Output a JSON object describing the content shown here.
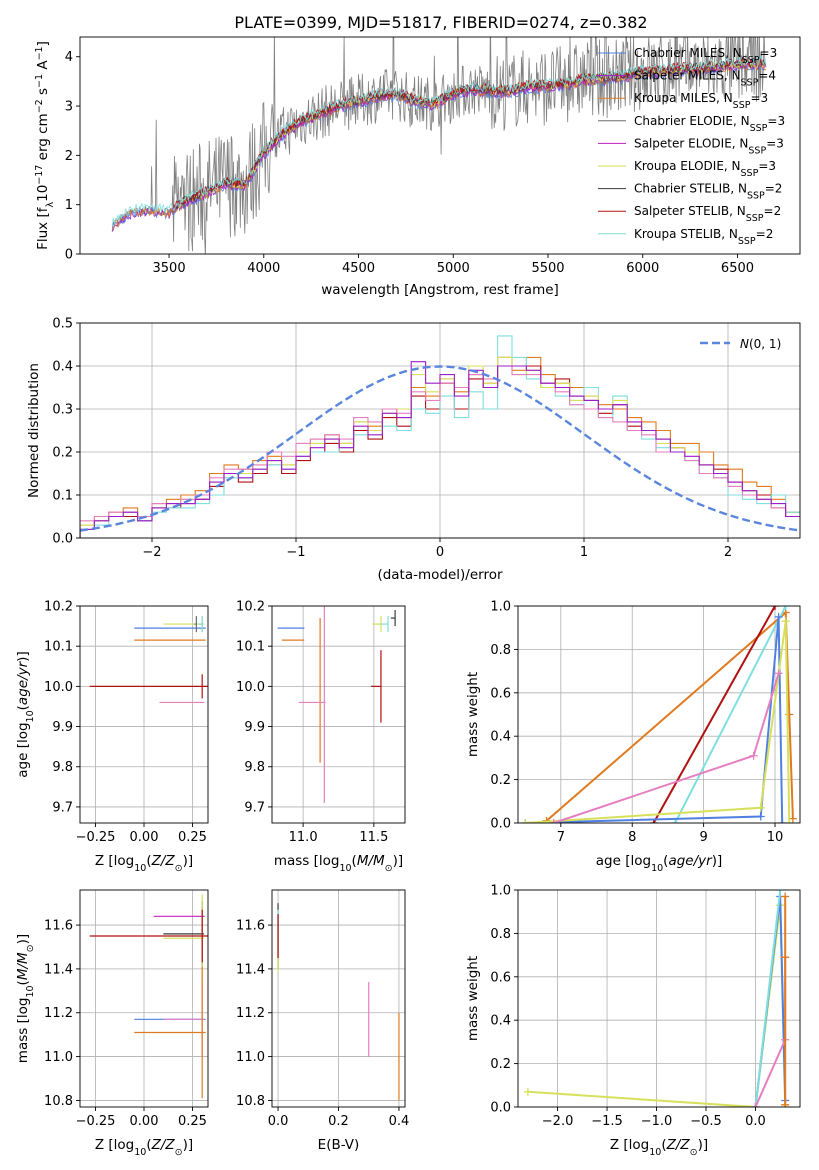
{
  "figure_title": "PLATE=0399, MJD=51817, FIBERID=0274, z=0.382",
  "colors": {
    "chabrier_miles": "#4f7fe0",
    "salpeter_miles": "#9a1fc8",
    "kroupa_miles": "#e07a1f",
    "chabrier_elodie": "#6e6e6e",
    "salpeter_elodie": "#c020c0",
    "kroupa_elodie": "#d6e05a",
    "chabrier_stelib": "#3a3a3a",
    "salpeter_stelib": "#b01010",
    "kroupa_stelib": "#7fdede",
    "pink": "#e67fbf",
    "normal_curve": "#5b86dd"
  },
  "chart_data": [
    {
      "id": "spectrum",
      "type": "line",
      "title": "PLATE=0399, MJD=51817, FIBERID=0274, z=0.382",
      "xlabel": "wavelength [Angstrom, rest frame]",
      "ylabel": "Flux [f_λ 10^-17 erg cm^-2 s^-1 A^-1]",
      "xlim": [
        3030,
        6830
      ],
      "ylim": [
        0,
        4.4
      ],
      "xticks": [
        3500,
        4000,
        4500,
        5000,
        5500,
        6000,
        6500
      ],
      "yticks": [
        0,
        1,
        2,
        3,
        4
      ],
      "legend_position": "right",
      "legend": [
        "Chabrier MILES, N_SSP=3",
        "Salpeter MILES, N_SSP=4",
        "Kroupa MILES, N_SSP=3",
        "Chabrier ELODIE, N_SSP=3",
        "Salpeter ELODIE, N_SSP=3",
        "Kroupa ELODIE, N_SSP=3",
        "Chabrier STELIB, N_SSP=2",
        "Salpeter STELIB, N_SSP=2",
        "Kroupa STELIB, N_SSP=2"
      ],
      "model_continuum": {
        "x": [
          3200,
          3300,
          3400,
          3500,
          3600,
          3700,
          3800,
          3900,
          4000,
          4100,
          4200,
          4300,
          4400,
          4500,
          4600,
          4700,
          4800,
          4900,
          5000,
          5100,
          5200,
          5300,
          5400,
          5500,
          5600,
          5700,
          5800,
          5900,
          6000,
          6100,
          6200,
          6300,
          6400,
          6500,
          6600
        ],
        "y": [
          0.6,
          0.85,
          0.9,
          0.85,
          1.1,
          1.25,
          1.45,
          1.4,
          2.05,
          2.45,
          2.7,
          2.85,
          3.0,
          3.1,
          3.2,
          3.25,
          3.1,
          3.05,
          3.25,
          3.35,
          3.3,
          3.3,
          3.4,
          3.4,
          3.45,
          3.55,
          3.55,
          3.6,
          3.7,
          3.7,
          3.75,
          3.75,
          3.8,
          3.85,
          3.85
        ]
      }
    },
    {
      "id": "residuals",
      "type": "histogram",
      "xlabel": "(data-model)/error",
      "ylabel": "Normed distribution",
      "xlim": [
        -2.5,
        2.5
      ],
      "ylim": [
        0,
        0.5
      ],
      "xticks": [
        -2,
        -1,
        0,
        1,
        2
      ],
      "yticks": [
        0.0,
        0.1,
        0.2,
        0.3,
        0.4,
        0.5
      ],
      "legend": [
        "N(0,1)"
      ],
      "legend_position": "top-right",
      "bin_width": 0.1,
      "bin_start": -2.5,
      "histograms": [
        {
          "color": "kroupa_miles",
          "values": [
            0.03,
            0.05,
            0.06,
            0.07,
            0.05,
            0.08,
            0.09,
            0.1,
            0.11,
            0.15,
            0.17,
            0.16,
            0.18,
            0.19,
            0.17,
            0.2,
            0.23,
            0.24,
            0.22,
            0.27,
            0.26,
            0.3,
            0.28,
            0.35,
            0.33,
            0.37,
            0.34,
            0.38,
            0.36,
            0.4,
            0.39,
            0.42,
            0.38,
            0.36,
            0.35,
            0.33,
            0.31,
            0.3,
            0.28,
            0.27,
            0.25,
            0.22,
            0.22,
            0.2,
            0.17,
            0.16,
            0.13,
            0.12,
            0.09,
            0.06
          ]
        },
        {
          "color": "salpeter_stelib",
          "values": [
            0.02,
            0.04,
            0.05,
            0.05,
            0.04,
            0.07,
            0.07,
            0.08,
            0.09,
            0.12,
            0.15,
            0.13,
            0.15,
            0.17,
            0.15,
            0.18,
            0.2,
            0.22,
            0.2,
            0.25,
            0.23,
            0.28,
            0.26,
            0.33,
            0.3,
            0.36,
            0.3,
            0.37,
            0.35,
            0.42,
            0.4,
            0.4,
            0.36,
            0.37,
            0.33,
            0.32,
            0.29,
            0.31,
            0.26,
            0.25,
            0.23,
            0.21,
            0.2,
            0.17,
            0.16,
            0.13,
            0.11,
            0.1,
            0.07,
            0.05
          ]
        },
        {
          "color": "kroupa_stelib",
          "values": [
            0.02,
            0.03,
            0.05,
            0.06,
            0.04,
            0.06,
            0.07,
            0.07,
            0.08,
            0.1,
            0.14,
            0.14,
            0.16,
            0.17,
            0.16,
            0.19,
            0.2,
            0.2,
            0.21,
            0.24,
            0.25,
            0.26,
            0.25,
            0.3,
            0.29,
            0.33,
            0.28,
            0.34,
            0.3,
            0.47,
            0.42,
            0.37,
            0.35,
            0.33,
            0.31,
            0.35,
            0.28,
            0.33,
            0.25,
            0.23,
            0.21,
            0.2,
            0.18,
            0.15,
            0.14,
            0.1,
            0.09,
            0.08,
            0.1,
            0.06
          ]
        },
        {
          "color": "kroupa_elodie",
          "values": [
            0.03,
            0.04,
            0.05,
            0.06,
            0.05,
            0.07,
            0.08,
            0.09,
            0.1,
            0.13,
            0.15,
            0.15,
            0.17,
            0.18,
            0.17,
            0.2,
            0.22,
            0.23,
            0.22,
            0.27,
            0.25,
            0.29,
            0.3,
            0.38,
            0.34,
            0.37,
            0.35,
            0.4,
            0.36,
            0.42,
            0.38,
            0.39,
            0.35,
            0.36,
            0.32,
            0.33,
            0.3,
            0.32,
            0.27,
            0.25,
            0.22,
            0.21,
            0.2,
            0.17,
            0.15,
            0.12,
            0.11,
            0.09,
            0.07,
            0.05
          ]
        },
        {
          "color": "pink",
          "values": [
            0.04,
            0.05,
            0.06,
            0.06,
            0.05,
            0.08,
            0.08,
            0.09,
            0.1,
            0.14,
            0.16,
            0.16,
            0.17,
            0.2,
            0.19,
            0.22,
            0.23,
            0.24,
            0.23,
            0.28,
            0.27,
            0.3,
            0.29,
            0.34,
            0.32,
            0.36,
            0.35,
            0.38,
            0.37,
            0.4,
            0.38,
            0.38,
            0.36,
            0.34,
            0.31,
            0.3,
            0.28,
            0.27,
            0.25,
            0.24,
            0.2,
            0.2,
            0.18,
            0.15,
            0.14,
            0.12,
            0.1,
            0.09,
            0.07,
            0.05
          ]
        },
        {
          "color": "salpeter_miles",
          "values": [
            0.02,
            0.04,
            0.05,
            0.06,
            0.04,
            0.07,
            0.08,
            0.08,
            0.09,
            0.13,
            0.15,
            0.14,
            0.16,
            0.18,
            0.16,
            0.19,
            0.21,
            0.23,
            0.21,
            0.26,
            0.24,
            0.29,
            0.28,
            0.41,
            0.36,
            0.38,
            0.33,
            0.39,
            0.35,
            0.4,
            0.4,
            0.39,
            0.36,
            0.35,
            0.33,
            0.32,
            0.3,
            0.31,
            0.27,
            0.25,
            0.23,
            0.2,
            0.19,
            0.17,
            0.15,
            0.13,
            0.11,
            0.09,
            0.08,
            0.05
          ]
        }
      ],
      "normal_curve": {
        "mean": 0,
        "sigma": 1
      }
    },
    {
      "id": "age_vs_Z",
      "type": "errorbar",
      "xlabel": "Z [log10(Z/Z_sun)]",
      "ylabel": "age [log10(age/yr)]",
      "xlim": [
        -0.33,
        0.33
      ],
      "ylim": [
        9.66,
        10.2
      ],
      "xticks": [
        -0.25,
        0.0,
        0.25
      ],
      "xticklabels": [
        "−0.25",
        "0.00",
        "0.25"
      ],
      "yticks": [
        9.7,
        9.8,
        9.9,
        10.0,
        10.1,
        10.2
      ],
      "points": [
        {
          "color": "chabrier_miles",
          "x": 0.3,
          "y": 10.145,
          "x_err": 0.35,
          "y_err": 0
        },
        {
          "color": "kroupa_miles",
          "x": 0.3,
          "y": 10.115,
          "x_err": 0.35,
          "y_err": 0
        },
        {
          "color": "kroupa_elodie",
          "x": 0.3,
          "y": 10.155,
          "x_err": 0.2,
          "y_err": 0.02
        },
        {
          "color": "chabrier_elodie",
          "x": 0.27,
          "y": 10.155,
          "x_err": 0.01,
          "y_err": 0.02
        },
        {
          "color": "kroupa_stelib",
          "x": 0.3,
          "y": 10.155,
          "x_err": 0.02,
          "y_err": 0.02
        },
        {
          "color": "salpeter_stelib",
          "x": 0.3,
          "y": 10.0,
          "x_err": 0.58,
          "y_err": 0.03
        },
        {
          "color": "pink",
          "x": 0.3,
          "y": 9.96,
          "x_err": 0.22,
          "y_err": 0
        }
      ]
    },
    {
      "id": "age_vs_mass",
      "type": "errorbar",
      "xlabel": "mass [log10(M/M_sun)]",
      "ylabel": "",
      "xlim": [
        10.78,
        11.72
      ],
      "ylim": [
        9.66,
        10.2
      ],
      "xticks": [
        11.0,
        11.5
      ],
      "yticks": [
        9.7,
        9.8,
        9.9,
        10.0,
        10.1,
        10.2
      ],
      "points": [
        {
          "color": "chabrier_miles",
          "x": 11.0,
          "y": 10.145,
          "x_err": 0.18,
          "y_err": 0
        },
        {
          "color": "kroupa_miles",
          "x": 11.0,
          "y": 10.115,
          "x_err": 0.15,
          "y_err": 0
        },
        {
          "color": "kroupa_miles",
          "x": 11.12,
          "y": 9.99,
          "x_err": 0,
          "y_err": 0.18
        },
        {
          "color": "pink",
          "x": 11.15,
          "y": 9.96,
          "x_err": 0.18,
          "y_err": 0.25
        },
        {
          "color": "kroupa_elodie",
          "x": 11.55,
          "y": 10.155,
          "x_err": 0.06,
          "y_err": 0.02
        },
        {
          "color": "kroupa_stelib",
          "x": 11.6,
          "y": 10.155,
          "x_err": 0.05,
          "y_err": 0.02
        },
        {
          "color": "chabrier_stelib",
          "x": 11.65,
          "y": 10.17,
          "x_err": 0.03,
          "y_err": 0.02
        },
        {
          "color": "salpeter_stelib",
          "x": 11.55,
          "y": 10.0,
          "x_err": 0.07,
          "y_err": 0.09
        }
      ]
    },
    {
      "id": "weight_vs_age",
      "type": "line",
      "xlabel": "age [log10(age/yr)]",
      "ylabel": "mass weight",
      "xlim": [
        6.4,
        10.35
      ],
      "ylim": [
        0,
        1
      ],
      "xticks": [
        7,
        8,
        9,
        10
      ],
      "yticks": [
        0.0,
        0.2,
        0.4,
        0.6,
        0.8,
        1.0
      ],
      "series": [
        {
          "color": "kroupa_miles",
          "x": [
            6.8,
            10.15,
            10.2,
            10.25
          ],
          "y": [
            0.01,
            0.97,
            0.5,
            0.02
          ]
        },
        {
          "color": "salpeter_stelib",
          "x": [
            8.3,
            10.0
          ],
          "y": [
            0.0,
            1.0
          ]
        },
        {
          "color": "kroupa_stelib",
          "x": [
            8.6,
            10.15
          ],
          "y": [
            0.0,
            1.0
          ]
        },
        {
          "color": "chabrier_miles",
          "x": [
            6.5,
            9.8,
            10.05,
            10.1
          ],
          "y": [
            0.0,
            0.03,
            0.95,
            0.0
          ]
        },
        {
          "color": "kroupa_elodie",
          "x": [
            6.5,
            9.8,
            10.15,
            10.2
          ],
          "y": [
            0.0,
            0.07,
            0.93,
            0.0
          ]
        },
        {
          "color": "pink",
          "x": [
            6.9,
            9.7,
            10.05
          ],
          "y": [
            0.0,
            0.31,
            0.69
          ]
        }
      ]
    },
    {
      "id": "mass_vs_Z",
      "type": "errorbar",
      "xlabel": "Z [log10(Z/Z_sun)]",
      "ylabel": "mass [log10(M/M_sun)]",
      "xlim": [
        -0.33,
        0.33
      ],
      "ylim": [
        10.77,
        11.76
      ],
      "xticks": [
        -0.25,
        0.0,
        0.25
      ],
      "xticklabels": [
        "−0.25",
        "0.00",
        "0.25"
      ],
      "yticks": [
        10.8,
        11.0,
        11.2,
        11.4,
        11.6
      ],
      "points": [
        {
          "color": "salpeter_elodie",
          "x": 0.3,
          "y": 11.64,
          "x_err": 0.25,
          "y_err": 0
        },
        {
          "color": "chabrier_stelib",
          "x": 0.3,
          "y": 11.56,
          "x_err": 0.2,
          "y_err": 0.15
        },
        {
          "color": "kroupa_elodie",
          "x": 0.3,
          "y": 11.54,
          "x_err": 0.2,
          "y_err": 0.2
        },
        {
          "color": "salpeter_stelib",
          "x": 0.3,
          "y": 11.55,
          "x_err": 0.58,
          "y_err": 0.12
        },
        {
          "color": "chabrier_miles",
          "x": 0.3,
          "y": 11.17,
          "x_err": 0.35,
          "y_err": 0
        },
        {
          "color": "pink",
          "x": 0.3,
          "y": 11.17,
          "x_err": 0.2,
          "y_err": 0.17
        },
        {
          "color": "kroupa_miles",
          "x": 0.3,
          "y": 11.11,
          "x_err": 0.35,
          "y_err": 0.3
        }
      ]
    },
    {
      "id": "mass_vs_EBV",
      "type": "errorbar",
      "xlabel": "E(B-V)",
      "ylabel": "",
      "xlim": [
        -0.02,
        0.42
      ],
      "ylim": [
        10.77,
        11.76
      ],
      "xticks": [
        0.0,
        0.2,
        0.4
      ],
      "yticks": [
        10.8,
        11.0,
        11.2,
        11.4,
        11.6
      ],
      "points": [
        {
          "color": "chabrier_stelib",
          "x": 0.0,
          "y": 11.55,
          "x_err": 0,
          "y_err": 0.15
        },
        {
          "color": "kroupa_stelib",
          "x": 0.0,
          "y": 11.55,
          "x_err": 0,
          "y_err": 0.12
        },
        {
          "color": "kroupa_elodie",
          "x": 0.0,
          "y": 11.48,
          "x_err": 0,
          "y_err": 0.1
        },
        {
          "color": "salpeter_stelib",
          "x": 0.0,
          "y": 11.55,
          "x_err": 0,
          "y_err": 0.1
        },
        {
          "color": "pink",
          "x": 0.3,
          "y": 11.17,
          "x_err": 0,
          "y_err": 0.17
        },
        {
          "color": "kroupa_miles",
          "x": 0.4,
          "y": 11.0,
          "x_err": 0,
          "y_err": 0.2
        }
      ]
    },
    {
      "id": "weight_vs_Z",
      "type": "line",
      "xlabel": "Z [log10(Z/Z_sun)]",
      "ylabel": "mass weight",
      "xlim": [
        -2.4,
        0.45
      ],
      "ylim": [
        0,
        1
      ],
      "xticks": [
        -2.0,
        -1.5,
        -1.0,
        -0.5,
        0.0
      ],
      "xticklabels": [
        "−2.0",
        "−1.5",
        "−1.0",
        "−0.5",
        "0.0"
      ],
      "yticks": [
        0.0,
        0.2,
        0.4,
        0.6,
        0.8,
        1.0
      ],
      "series": [
        {
          "color": "kroupa_elodie",
          "x": [
            -2.3,
            0.0,
            0.25,
            0.3
          ],
          "y": [
            0.07,
            0.0,
            0.93,
            0.0
          ]
        },
        {
          "color": "chabrier_miles",
          "x": [
            0.0,
            0.25,
            0.3
          ],
          "y": [
            0.0,
            0.97,
            0.03
          ]
        },
        {
          "color": "kroupa_stelib",
          "x": [
            0.0,
            0.25
          ],
          "y": [
            0.0,
            1.0
          ]
        },
        {
          "color": "pink",
          "x": [
            0.0,
            0.3,
            0.3
          ],
          "y": [
            0.0,
            0.31,
            0.69
          ]
        },
        {
          "color": "kroupa_miles",
          "x": [
            0.3,
            0.3,
            0.3
          ],
          "y": [
            0.01,
            0.69,
            0.97
          ]
        }
      ]
    }
  ]
}
